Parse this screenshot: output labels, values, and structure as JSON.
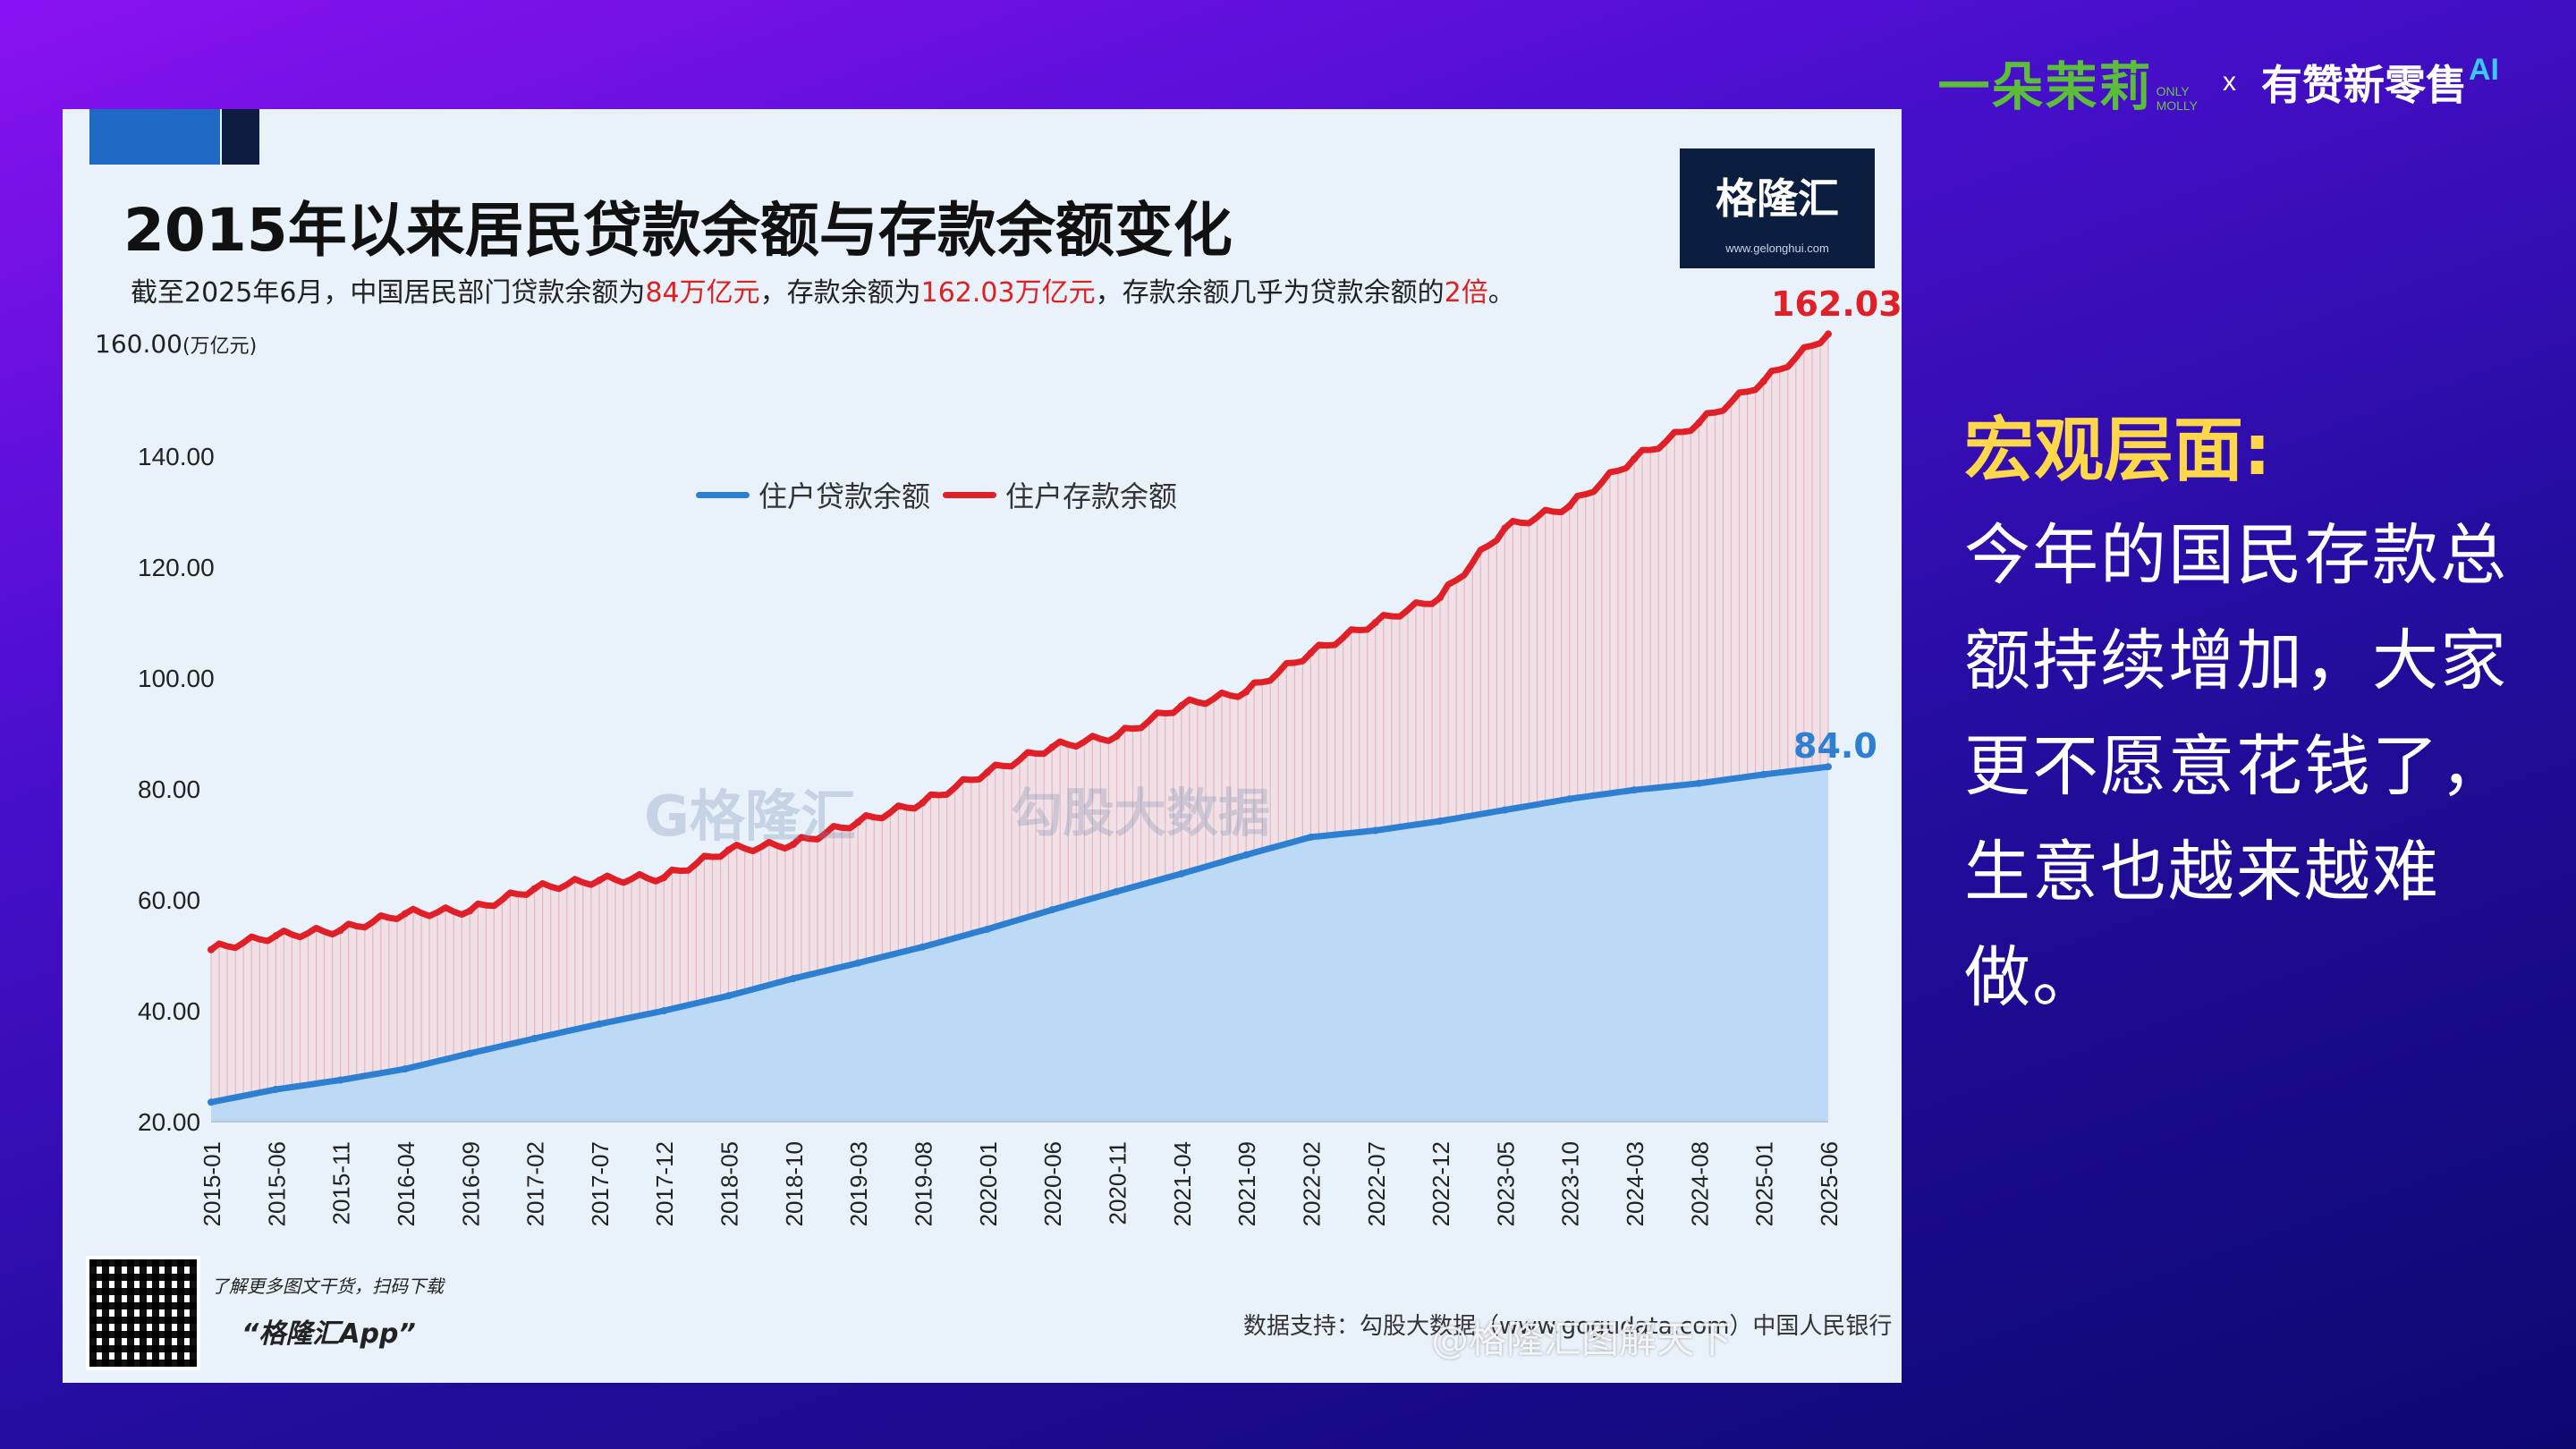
{
  "brand": {
    "molly_cn": "一朵茉莉",
    "molly_en1": "ONLY",
    "molly_en2": "MOLLY",
    "x": "x",
    "youzan_cn": "有赞新零售",
    "youzan_ai": "AI"
  },
  "side": {
    "heading": "宏观层面:",
    "body": "今年的国民存款总额持续增加，大家更不愿意花钱了，生意也越来越难做。"
  },
  "card": {
    "logo_text": "格隆汇",
    "logo_url": "www.gelonghui.com",
    "watermark1": "G格隆汇",
    "watermark2": "勾股大数据",
    "qr_text": "了解更多图文干货，扫码下载",
    "app_text": "“格隆汇App”",
    "source": "数据支持：勾股大数据（www.gogudata.com）中国人民银行",
    "weibo": "@格隆汇图解天下",
    "subtitle_parts": [
      "截至2025年6月，中国居民部门贷款余额为",
      "84万亿元",
      "，存款余额为",
      "162.03万亿元",
      "，存款余额几乎为贷款余额的",
      "2倍",
      "。"
    ],
    "deposit_end_label": "162.03",
    "loan_end_label": "84.0"
  },
  "colors": {
    "loan": "#2d7fd2",
    "loan_fill": "#bcd9f6",
    "deposit": "#e01f26",
    "gap_fill": "#f1e0e6",
    "heading": "#ffd84a"
  },
  "chart_data": {
    "type": "area",
    "title": "2015年以来居民贷款余额与存款余额变化",
    "ylabel": "(万亿元)",
    "ylim": [
      20,
      160
    ],
    "y_ticks": [
      "20.00",
      "40.00",
      "60.00",
      "80.00",
      "100.00",
      "120.00",
      "140.00",
      "160.00"
    ],
    "legend_position": "top-center",
    "x_ticks": [
      "2015-01",
      "2015-06",
      "2015-11",
      "2016-04",
      "2016-09",
      "2017-02",
      "2017-07",
      "2017-12",
      "2018-05",
      "2018-10",
      "2019-03",
      "2019-08",
      "2020-01",
      "2020-06",
      "2020-11",
      "2021-04",
      "2021-09",
      "2022-02",
      "2022-07",
      "2022-12",
      "2023-05",
      "2023-10",
      "2024-03",
      "2024-08",
      "2025-01",
      "2025-06"
    ],
    "series": [
      {
        "name": "住户贷款余额",
        "values": [
          23.5,
          25.8,
          27.5,
          29.5,
          32.3,
          35.0,
          37.6,
          40.0,
          42.7,
          45.8,
          48.6,
          51.5,
          54.7,
          58.2,
          61.5,
          64.7,
          68.1,
          71.3,
          72.5,
          74.2,
          76.2,
          78.2,
          79.8,
          81.0,
          82.6,
          84.0
        ]
      },
      {
        "name": "住户存款余额",
        "values": [
          51.0,
          53.5,
          54.5,
          57.5,
          58.0,
          62.0,
          63.5,
          64.0,
          69.0,
          70.0,
          74.0,
          77.5,
          83.0,
          87.5,
          89.5,
          95.0,
          97.5,
          104.5,
          110.0,
          114.5,
          127.0,
          131.0,
          139.5,
          146.0,
          153.5,
          162.03
        ]
      }
    ]
  }
}
